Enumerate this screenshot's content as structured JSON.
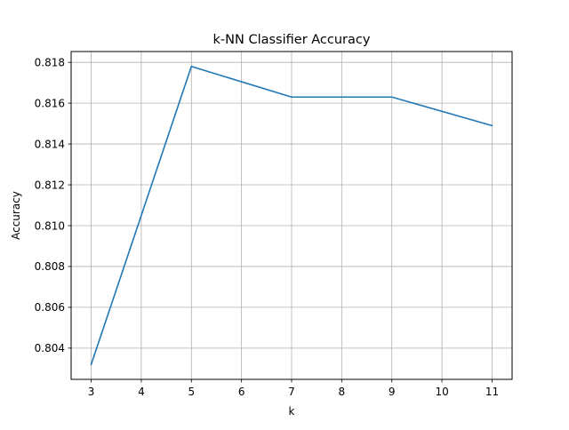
{
  "chart_data": {
    "type": "line",
    "title": "k-NN Classifier Accuracy",
    "xlabel": "k",
    "ylabel": "Accuracy",
    "x": [
      3,
      5,
      7,
      9,
      11
    ],
    "series": [
      {
        "values": [
          0.8032,
          0.8178,
          0.8163,
          0.8163,
          0.8149
        ],
        "color": "#1f77b4"
      }
    ],
    "xlim": [
      2.6,
      11.4
    ],
    "ylim": [
      0.80247,
      0.81853
    ],
    "xticks": [
      3,
      4,
      5,
      6,
      7,
      8,
      9,
      10,
      11
    ],
    "xtick_labels": [
      "3",
      "4",
      "5",
      "6",
      "7",
      "8",
      "9",
      "10",
      "11"
    ],
    "yticks": [
      0.804,
      0.806,
      0.808,
      0.81,
      0.812,
      0.814,
      0.816,
      0.818
    ],
    "ytick_labels": [
      "0.804",
      "0.806",
      "0.808",
      "0.810",
      "0.812",
      "0.814",
      "0.816",
      "0.818"
    ],
    "grid": true,
    "grid_color": "#b0b0b0",
    "legend": "none"
  }
}
